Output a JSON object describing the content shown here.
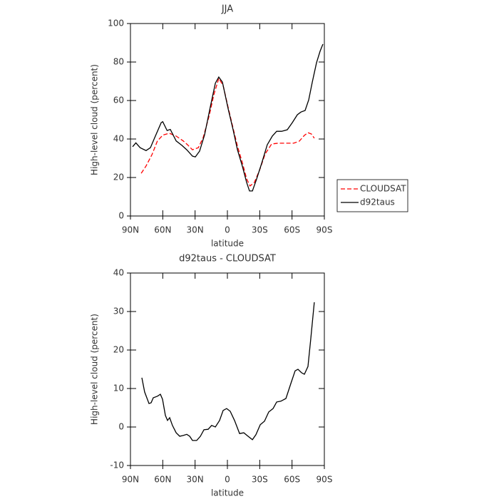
{
  "chart_data": [
    {
      "type": "line",
      "title": "JJA",
      "xlabel": "latitude",
      "ylabel": "High-level cloud (percent)",
      "xlim": [
        90,
        -90
      ],
      "xticks": [
        {
          "value": 90,
          "label": "90N"
        },
        {
          "value": 60,
          "label": "60N"
        },
        {
          "value": 30,
          "label": "30N"
        },
        0,
        {
          "value": -30,
          "label": "30S"
        },
        {
          "value": -60,
          "label": "60S"
        },
        {
          "value": -90,
          "label": "90S"
        }
      ],
      "ylim": [
        0,
        100
      ],
      "yticks": [
        0,
        20,
        40,
        60,
        80,
        100
      ],
      "legend": "right",
      "series": [
        {
          "name": "CLOUDSAT",
          "color": "#ff0000",
          "line_style": "dashed",
          "x": [
            80,
            75.5,
            70,
            65,
            60,
            54,
            47.6,
            41,
            37,
            32.4,
            27,
            22.5,
            17,
            12.6,
            8,
            4,
            -0.7,
            -5.3,
            -9.3,
            -14,
            -17.9,
            -21,
            -25,
            -30,
            -35,
            -41,
            -47,
            -53.6,
            -61.5,
            -66.8,
            -71.5,
            -74.8,
            -78,
            -80.7
          ],
          "values": [
            22.2,
            26,
            31.9,
            39,
            42,
            43,
            41.5,
            39,
            37,
            34.4,
            35.5,
            40.7,
            51.9,
            63,
            71.5,
            67.8,
            56.3,
            45.6,
            36.3,
            27.4,
            19.3,
            15.6,
            17.4,
            24,
            32.2,
            37.4,
            37.8,
            37.8,
            37.8,
            38.9,
            41.9,
            43.3,
            42.6,
            40.4
          ]
        },
        {
          "name": "d92taus",
          "color": "#000000",
          "line_style": "solid",
          "x": [
            88,
            85,
            81,
            75.5,
            71.5,
            67.5,
            61.5,
            60,
            56,
            53,
            47.6,
            42.3,
            37.7,
            32.4,
            29.8,
            25.8,
            21.2,
            16,
            11.2,
            8,
            4.6,
            -0.7,
            -5.3,
            -9.3,
            -14,
            -17.9,
            -20.5,
            -23.2,
            -27,
            -31.8,
            -37,
            -41.7,
            -45.7,
            -50.3,
            -55.6,
            -60.2,
            -64.9,
            -68.2,
            -72.1,
            -75.5,
            -78.8,
            -82.7,
            -86,
            -88.7
          ],
          "values": [
            36,
            38,
            35.5,
            34,
            35.5,
            40.7,
            48.5,
            49,
            44.4,
            45,
            39,
            36.7,
            34.4,
            31.1,
            30.7,
            33.7,
            42.2,
            56.3,
            69,
            72.2,
            69.6,
            55.6,
            44.8,
            34.4,
            25.6,
            17.4,
            13,
            13,
            19,
            27.4,
            37,
            41.5,
            44,
            44,
            44.8,
            48.5,
            52.6,
            54,
            54.8,
            60.4,
            69.6,
            79.6,
            85.6,
            89.3
          ]
        }
      ]
    },
    {
      "type": "line",
      "title": "d92taus - CLOUDSAT",
      "xlabel": "latitude",
      "ylabel": "High-level cloud (percent)",
      "xlim": [
        90,
        -90
      ],
      "xticks": [
        {
          "value": 90,
          "label": "90N"
        },
        {
          "value": 60,
          "label": "60N"
        },
        {
          "value": 30,
          "label": "30N"
        },
        0,
        {
          "value": -30,
          "label": "30S"
        },
        {
          "value": -60,
          "label": "60S"
        },
        {
          "value": -90,
          "label": "90S"
        }
      ],
      "ylim": [
        -10,
        40
      ],
      "yticks": [
        -10,
        0,
        10,
        20,
        30,
        40
      ],
      "series": [
        {
          "color": "#000000",
          "line_style": "solid",
          "x": [
            79.4,
            76.8,
            72.8,
            70.8,
            68.8,
            65,
            62.2,
            60.2,
            57.6,
            55.6,
            53.6,
            51,
            47.6,
            44.3,
            41,
            37.7,
            35,
            32.4,
            28.5,
            25.1,
            21.8,
            17.9,
            14.6,
            11.2,
            7.3,
            4,
            0.7,
            -2.6,
            -6.6,
            -11.3,
            -15.2,
            -19.2,
            -23.2,
            -26.5,
            -30.5,
            -34.4,
            -38.4,
            -42.4,
            -45.7,
            -49.6,
            -54.3,
            -58.9,
            -62.9,
            -65.5,
            -68.8,
            -71.5,
            -74.8,
            -77.4,
            -80.7
          ],
          "values": [
            12.8,
            9.1,
            6.1,
            6.3,
            7.6,
            8,
            8.5,
            7.2,
            3,
            1.7,
            2.4,
            0.4,
            -1.5,
            -2.4,
            -2.2,
            -1.9,
            -2.4,
            -3.5,
            -3.5,
            -2.4,
            -0.7,
            -0.6,
            0.4,
            0,
            1.7,
            4.3,
            4.8,
            4.1,
            1.7,
            -1.7,
            -1.5,
            -2.4,
            -3.3,
            -2,
            0.6,
            1.5,
            3.9,
            4.8,
            6.5,
            6.7,
            7.4,
            11.3,
            14.6,
            15,
            14.1,
            13.7,
            15.7,
            23,
            32.4
          ]
        }
      ]
    }
  ]
}
